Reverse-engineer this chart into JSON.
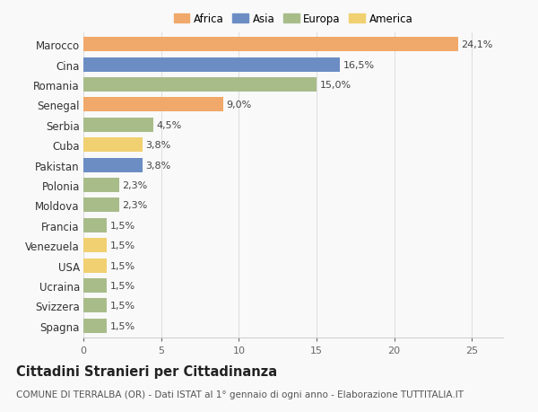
{
  "countries": [
    "Marocco",
    "Cina",
    "Romania",
    "Senegal",
    "Serbia",
    "Cuba",
    "Pakistan",
    "Polonia",
    "Moldova",
    "Francia",
    "Venezuela",
    "USA",
    "Ucraina",
    "Svizzera",
    "Spagna"
  ],
  "values": [
    24.1,
    16.5,
    15.0,
    9.0,
    4.5,
    3.8,
    3.8,
    2.3,
    2.3,
    1.5,
    1.5,
    1.5,
    1.5,
    1.5,
    1.5
  ],
  "labels": [
    "24,1%",
    "16,5%",
    "15,0%",
    "9,0%",
    "4,5%",
    "3,8%",
    "3,8%",
    "2,3%",
    "2,3%",
    "1,5%",
    "1,5%",
    "1,5%",
    "1,5%",
    "1,5%",
    "1,5%"
  ],
  "continents": [
    "Africa",
    "Asia",
    "Europa",
    "Africa",
    "Europa",
    "America",
    "Asia",
    "Europa",
    "Europa",
    "Europa",
    "America",
    "America",
    "Europa",
    "Europa",
    "Europa"
  ],
  "colors": {
    "Africa": "#F0A96A",
    "Asia": "#6B8DC4",
    "Europa": "#A8BC8A",
    "America": "#F0D070"
  },
  "legend_order": [
    "Africa",
    "Asia",
    "Europa",
    "America"
  ],
  "xlim": [
    0,
    27
  ],
  "xticks": [
    0,
    5,
    10,
    15,
    20,
    25
  ],
  "title": "Cittadini Stranieri per Cittadinanza",
  "subtitle": "COMUNE DI TERRALBA (OR) - Dati ISTAT al 1° gennaio di ogni anno - Elaborazione TUTTITALIA.IT",
  "bg_color": "#f9f9f9",
  "bar_height": 0.72,
  "label_fontsize": 8,
  "title_fontsize": 10.5,
  "subtitle_fontsize": 7.5,
  "ytick_fontsize": 8.5,
  "xtick_fontsize": 8
}
